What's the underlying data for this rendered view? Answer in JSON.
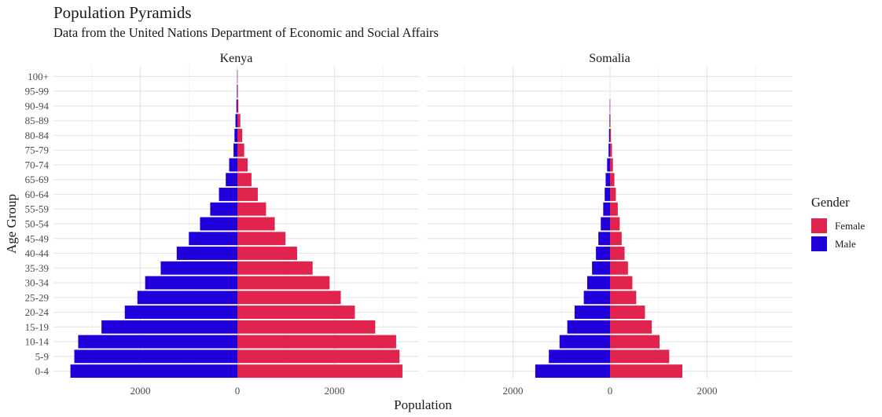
{
  "title": "Population Pyramids",
  "subtitle": "Data from the United Nations Department of Economic and Social Affairs",
  "chart_data": {
    "type": "bar",
    "orientation": "horizontal",
    "xlabel": "Population",
    "ylabel": "Age Group",
    "categories": [
      "0-4",
      "5-9",
      "10-14",
      "15-19",
      "20-24",
      "25-29",
      "30-34",
      "35-39",
      "40-44",
      "45-49",
      "50-54",
      "55-59",
      "60-64",
      "65-69",
      "70-74",
      "75-79",
      "80-84",
      "85-89",
      "90-94",
      "95-99",
      "100+"
    ],
    "x_tick_labels": [
      "2000",
      "0",
      "2000"
    ],
    "grid": true,
    "legend": {
      "title": "Gender",
      "position": "right",
      "entries": [
        {
          "name": "Female",
          "color": "#E0244D"
        },
        {
          "name": "Male",
          "color": "#1F00DB"
        }
      ]
    },
    "panels": [
      {
        "name": "Kenya",
        "xlim": [
          -3600,
          3800
        ],
        "series": [
          {
            "name": "Male",
            "color": "#1F00DB",
            "values": [
              3440,
              3360,
              3280,
              2800,
              2320,
              2060,
              1900,
              1580,
              1250,
              1000,
              770,
              560,
              380,
              240,
              170,
              80,
              60,
              40,
              20,
              10,
              5
            ]
          },
          {
            "name": "Female",
            "color": "#E0244D",
            "values": [
              3400,
              3340,
              3270,
              2840,
              2420,
              2130,
              1900,
              1550,
              1230,
              990,
              770,
              590,
              420,
              290,
              210,
              140,
              100,
              60,
              20,
              10,
              5
            ]
          }
        ]
      },
      {
        "name": "Somalia",
        "xlim": [
          -2000,
          3800
        ],
        "series": [
          {
            "name": "Male",
            "color": "#1F00DB",
            "values": [
              1540,
              1260,
              1040,
              880,
              730,
              540,
              470,
              370,
              290,
              240,
              190,
              140,
              110,
              90,
              60,
              30,
              20,
              10,
              5,
              0,
              0
            ]
          },
          {
            "name": "Female",
            "color": "#E0244D",
            "values": [
              1490,
              1220,
              1020,
              860,
              720,
              540,
              460,
              370,
              300,
              240,
              200,
              160,
              120,
              90,
              60,
              40,
              20,
              10,
              5,
              0,
              0
            ]
          }
        ]
      }
    ]
  }
}
